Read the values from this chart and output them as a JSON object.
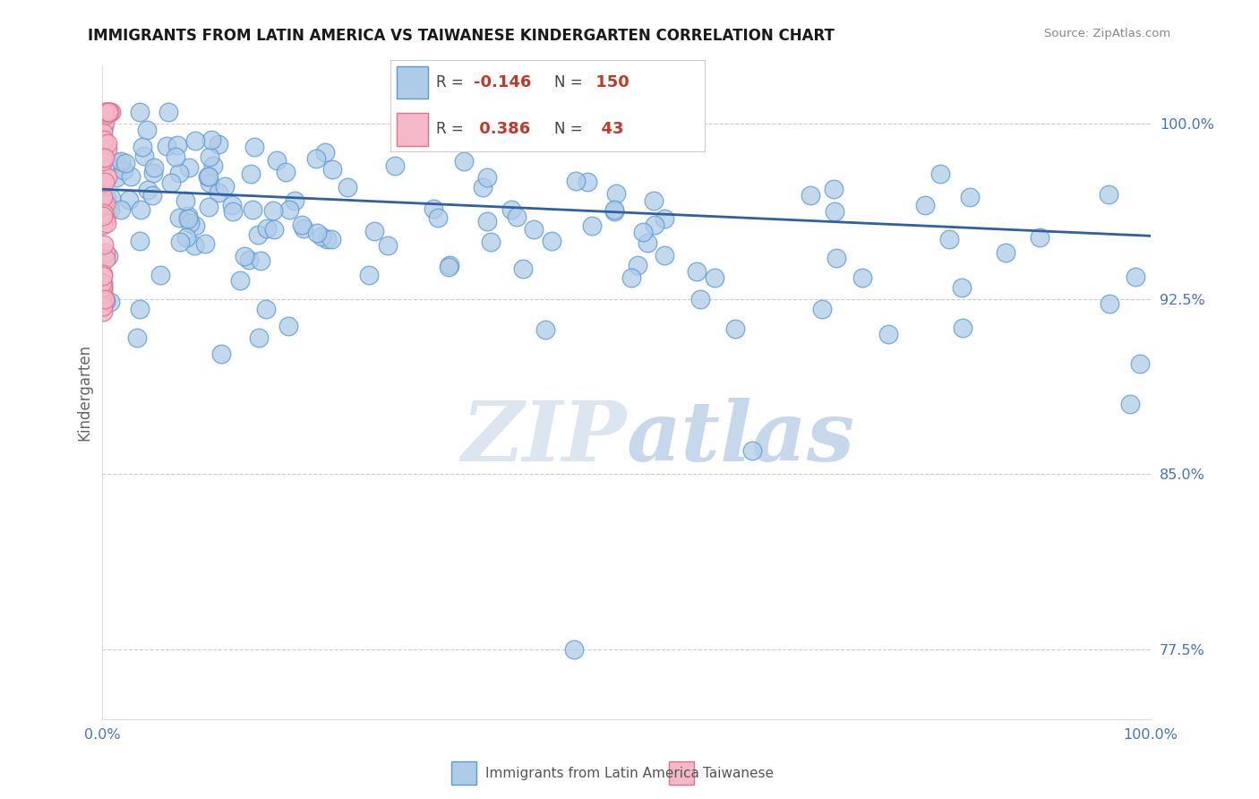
{
  "title": "IMMIGRANTS FROM LATIN AMERICA VS TAIWANESE KINDERGARTEN CORRELATION CHART",
  "source": "Source: ZipAtlas.com",
  "ylabel": "Kindergarten",
  "xlim": [
    0.0,
    1.0
  ],
  "ylim": [
    0.745,
    1.025
  ],
  "yticks": [
    1.0,
    0.925,
    0.85,
    0.775
  ],
  "ytick_labels": [
    "100.0%",
    "92.5%",
    "85.0%",
    "77.5%"
  ],
  "xticks": [
    0.0,
    0.25,
    0.5,
    0.75,
    1.0
  ],
  "xtick_labels": [
    "0.0%",
    "",
    "",
    "",
    "100.0%"
  ],
  "blue_R": -0.146,
  "blue_N": 150,
  "pink_R": 0.386,
  "pink_N": 43,
  "blue_color": "#aecce8",
  "blue_edge": "#5b9bd5",
  "pink_color": "#f4b8c8",
  "pink_edge": "#e07090",
  "line_color": "#3060a0",
  "background_color": "#ffffff",
  "title_fontsize": 12,
  "tick_color": "#4472c4",
  "legend_label_blue": "Immigrants from Latin America",
  "legend_label_pink": "Taiwanese",
  "line_y_start": 0.972,
  "line_y_end": 0.952
}
